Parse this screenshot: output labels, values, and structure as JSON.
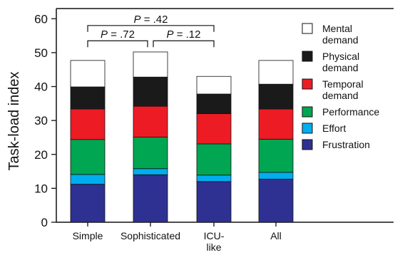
{
  "chart_data": {
    "type": "bar",
    "stacked": true,
    "categories": [
      "Simple",
      "Sophisticated",
      "ICU-like",
      "All"
    ],
    "category_lines": [
      [
        "Simple"
      ],
      [
        "Sophisticated"
      ],
      [
        "ICU-",
        "like"
      ],
      [
        "All"
      ]
    ],
    "ylabel": "Task-load index",
    "xlabel": "",
    "title": "",
    "ylim": [
      0,
      63
    ],
    "yticks": [
      0,
      10,
      20,
      30,
      40,
      50,
      60
    ],
    "grid": false,
    "legend_position": "right",
    "series": [
      {
        "name": "Frustration",
        "color": "#2e3192",
        "values": [
          11.2,
          14.0,
          12.0,
          12.7
        ]
      },
      {
        "name": "Effort",
        "color": "#00aeef",
        "values": [
          2.9,
          1.8,
          1.9,
          2.0
        ]
      },
      {
        "name": "Performance",
        "color": "#00a651",
        "values": [
          10.3,
          9.3,
          9.2,
          9.8
        ]
      },
      {
        "name": "Temporal demand",
        "color": "#ed1c24",
        "values": [
          9.0,
          9.1,
          8.9,
          8.9
        ]
      },
      {
        "name": "Physical demand",
        "color": "#1a1a1a",
        "values": [
          6.5,
          8.6,
          5.8,
          7.3
        ]
      },
      {
        "name": "Mental demand",
        "color": "#ffffff",
        "values": [
          7.8,
          7.4,
          5.2,
          7.0
        ]
      }
    ],
    "legend": [
      {
        "lines": [
          "Mental",
          "demand"
        ],
        "color": "#ffffff"
      },
      {
        "lines": [
          "Physical",
          "demand"
        ],
        "color": "#1a1a1a"
      },
      {
        "lines": [
          "Temporal",
          "demand"
        ],
        "color": "#ed1c24"
      },
      {
        "lines": [
          "Performance"
        ],
        "color": "#00a651"
      },
      {
        "lines": [
          "Effort"
        ],
        "color": "#00aeef"
      },
      {
        "lines": [
          "Frustration"
        ],
        "color": "#2e3192"
      }
    ],
    "annotations": [
      {
        "from": "Simple",
        "to": "ICU-like",
        "p_letter": "P",
        "p_rest": " = .42",
        "y": 58
      },
      {
        "from": "Simple",
        "to": "Sophisticated",
        "p_letter": "P",
        "p_rest": " = .72",
        "y": 53.5
      },
      {
        "from": "Sophisticated",
        "to": "ICU-like",
        "p_letter": "P",
        "p_rest": " = .12",
        "y": 53.5
      }
    ]
  }
}
